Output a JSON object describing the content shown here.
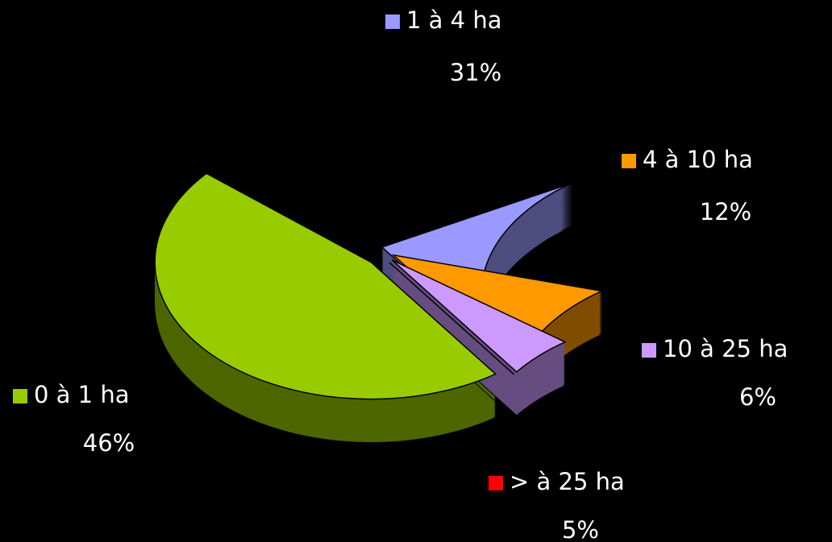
{
  "chart_data": {
    "type": "pie",
    "categories": [
      "0 à 1 ha",
      "1 à 4 ha",
      "4 à 10 ha",
      "10 à 25 ha",
      "> à 25 ha"
    ],
    "values": [
      46,
      31,
      12,
      6,
      5
    ],
    "value_labels": [
      "46%",
      "31%",
      "12%",
      "6%",
      "5%"
    ],
    "colors": [
      "#99cc00",
      "#9999ff",
      "#ff9900",
      "#cc99ff",
      "#ff0000"
    ]
  }
}
